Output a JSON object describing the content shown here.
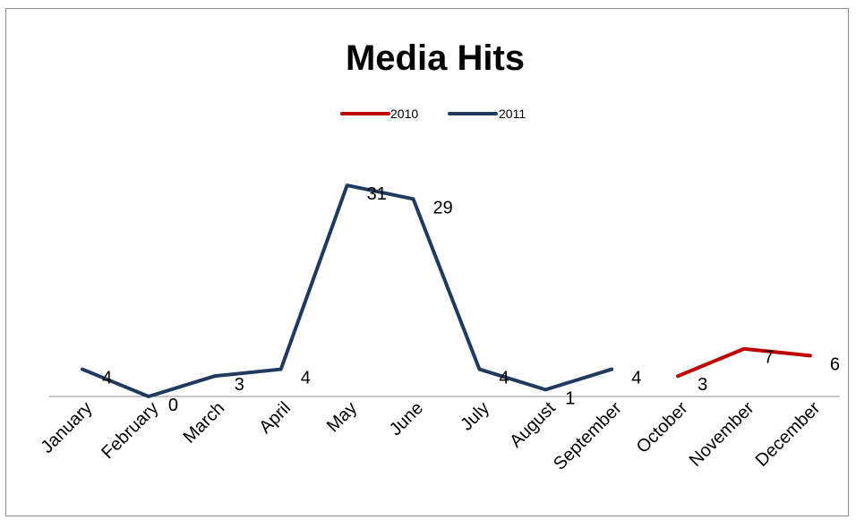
{
  "chart_data": {
    "type": "line",
    "title": "Media Hits",
    "xlabel": "",
    "ylabel": "",
    "categories": [
      "January",
      "February",
      "March",
      "April",
      "May",
      "June",
      "July",
      "August",
      "September",
      "October",
      "November",
      "December"
    ],
    "series": [
      {
        "name": "2010",
        "color": "#c00000",
        "values": [
          null,
          null,
          null,
          null,
          null,
          null,
          null,
          null,
          null,
          3,
          7,
          6
        ]
      },
      {
        "name": "2011",
        "color": "#1f3a5f",
        "values": [
          4,
          0,
          3,
          4,
          31,
          29,
          4,
          1,
          4,
          null,
          null,
          null
        ]
      }
    ],
    "ylim": [
      0,
      35
    ],
    "grid": false,
    "legend_position": "top"
  }
}
